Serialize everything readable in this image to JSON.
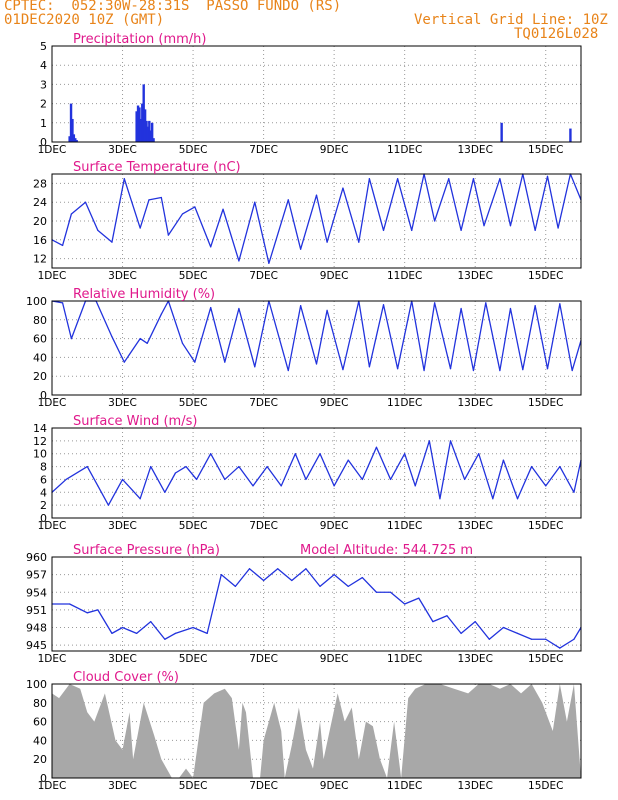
{
  "header": {
    "line1": "CPTEC:  052:30W-28:31S  PASSO FUNDO (RS)",
    "line2": "01DEC2020 10Z (GMT)",
    "grid_note": "Vertical Grid Line: 10Z",
    "model_code": "TQ0126L028"
  },
  "colors": {
    "header": "#e8841a",
    "title": "#e0198c",
    "series": "#2233dd",
    "cloud": "#a8a8a8"
  },
  "chart_data": [
    {
      "type": "bar",
      "title": "Precipitation (mm/h)",
      "x_ticks": [
        "1DEC",
        "3DEC",
        "5DEC",
        "7DEC",
        "9DEC",
        "11DEC",
        "13DEC",
        "15DEC"
      ],
      "y_ticks": [
        0,
        1,
        2,
        3,
        4,
        5
      ],
      "ylim": [
        0,
        5
      ],
      "xlim_days": [
        0,
        15
      ],
      "x_days": [
        0.5,
        0.54,
        0.58,
        0.62,
        0.66,
        0.7,
        2.4,
        2.44,
        2.48,
        2.52,
        2.56,
        2.6,
        2.64,
        2.68,
        2.72,
        2.76,
        2.8,
        2.84,
        2.88,
        12.75,
        14.7
      ],
      "values": [
        0.3,
        2.0,
        1.2,
        0.4,
        0.2,
        0.1,
        1.6,
        1.9,
        1.8,
        1.2,
        2.0,
        3.0,
        1.7,
        1.1,
        0.8,
        1.1,
        0.6,
        1.0,
        0.2,
        1.0,
        0.7
      ],
      "grid": true
    },
    {
      "type": "line",
      "title": "Surface Temperature (nC)",
      "x_ticks": [
        "1DEC",
        "3DEC",
        "5DEC",
        "7DEC",
        "9DEC",
        "11DEC",
        "13DEC",
        "15DEC"
      ],
      "y_ticks": [
        12,
        16,
        20,
        24,
        28
      ],
      "ylim": [
        10,
        30
      ],
      "xlim_days": [
        0,
        15
      ],
      "x_days": [
        0,
        0.3,
        0.55,
        0.95,
        1.3,
        1.7,
        2.05,
        2.5,
        2.75,
        3.1,
        3.3,
        3.7,
        4.05,
        4.5,
        4.85,
        5.3,
        5.75,
        6.15,
        6.7,
        7.05,
        7.5,
        7.8,
        8.25,
        8.7,
        9.0,
        9.4,
        9.8,
        10.2,
        10.55,
        10.85,
        11.25,
        11.6,
        11.95,
        12.25,
        12.7,
        13.0,
        13.35,
        13.7,
        14.05,
        14.35,
        14.7,
        15.0
      ],
      "values": [
        16,
        14.8,
        21.5,
        24,
        18,
        15.5,
        29,
        18.5,
        24.5,
        25,
        17,
        21.5,
        23,
        14.5,
        22.5,
        11.5,
        24,
        11,
        24.5,
        14,
        25.5,
        15.5,
        27,
        15.5,
        29,
        18,
        29,
        18,
        30,
        20,
        29,
        18,
        29,
        19,
        29,
        19,
        30,
        18,
        29.5,
        18.5,
        30,
        24.5
      ],
      "grid": true
    },
    {
      "type": "line",
      "title": "Relative Humidity (%)",
      "x_ticks": [
        "1DEC",
        "3DEC",
        "5DEC",
        "7DEC",
        "9DEC",
        "11DEC",
        "13DEC",
        "15DEC"
      ],
      "y_ticks": [
        0,
        20,
        40,
        60,
        80,
        100
      ],
      "ylim": [
        0,
        100
      ],
      "xlim_days": [
        0,
        15
      ],
      "x_days": [
        0,
        0.3,
        0.55,
        0.95,
        1.25,
        1.7,
        2.05,
        2.5,
        2.7,
        3.1,
        3.3,
        3.7,
        4.05,
        4.5,
        4.9,
        5.3,
        5.75,
        6.15,
        6.7,
        7.05,
        7.5,
        7.8,
        8.25,
        8.7,
        9.0,
        9.4,
        9.8,
        10.2,
        10.55,
        10.85,
        11.3,
        11.6,
        11.95,
        12.3,
        12.7,
        13.0,
        13.35,
        13.7,
        14.05,
        14.4,
        14.75,
        15.0
      ],
      "values": [
        100,
        98,
        60,
        100,
        100,
        62,
        35,
        60,
        55,
        86,
        100,
        55,
        35,
        93,
        35,
        92,
        30,
        100,
        26,
        95,
        33,
        90,
        27,
        100,
        30,
        96,
        28,
        100,
        26,
        98,
        28,
        92,
        26,
        98,
        26,
        92,
        27,
        95,
        28,
        97,
        26,
        58
      ],
      "grid": true
    },
    {
      "type": "line",
      "title": "Surface Wind (m/s)",
      "x_ticks": [
        "1DEC",
        "3DEC",
        "5DEC",
        "7DEC",
        "9DEC",
        "11DEC",
        "13DEC",
        "15DEC"
      ],
      "y_ticks": [
        0,
        2,
        4,
        6,
        8,
        10,
        12,
        14
      ],
      "ylim": [
        0,
        14
      ],
      "xlim_days": [
        0,
        15
      ],
      "x_days": [
        0,
        0.4,
        1.0,
        1.3,
        1.6,
        2.0,
        2.5,
        2.8,
        3.2,
        3.5,
        3.8,
        4.1,
        4.5,
        4.9,
        5.3,
        5.7,
        6.1,
        6.5,
        6.9,
        7.2,
        7.6,
        8.0,
        8.4,
        8.8,
        9.2,
        9.6,
        10.0,
        10.3,
        10.7,
        11.0,
        11.3,
        11.7,
        12.1,
        12.5,
        12.8,
        13.2,
        13.6,
        14.0,
        14.4,
        14.8,
        15.0
      ],
      "values": [
        4,
        6,
        8,
        5,
        2,
        6,
        3,
        8,
        4,
        7,
        8,
        6,
        10,
        6,
        8,
        5,
        8,
        5,
        10,
        6,
        10,
        5,
        9,
        6,
        11,
        6,
        10,
        5,
        12,
        3,
        12,
        6,
        10,
        3,
        9,
        3,
        8,
        5,
        8,
        4,
        9
      ],
      "grid": true
    },
    {
      "type": "line",
      "title": "Surface Pressure (hPa)",
      "annotation": "Model Altitude: 544.725 m",
      "x_ticks": [
        "1DEC",
        "3DEC",
        "5DEC",
        "7DEC",
        "9DEC",
        "11DEC",
        "13DEC",
        "15DEC"
      ],
      "y_ticks": [
        945,
        948,
        951,
        954,
        957,
        960
      ],
      "ylim": [
        944,
        960
      ],
      "xlim_days": [
        0,
        15
      ],
      "x_days": [
        0,
        0.5,
        1.0,
        1.3,
        1.7,
        2.0,
        2.4,
        2.8,
        3.2,
        3.5,
        4.0,
        4.4,
        4.8,
        5.2,
        5.6,
        6.0,
        6.4,
        6.8,
        7.2,
        7.6,
        8.0,
        8.4,
        8.8,
        9.2,
        9.6,
        10.0,
        10.4,
        10.8,
        11.2,
        11.6,
        12.0,
        12.4,
        12.8,
        13.2,
        13.6,
        14.0,
        14.4,
        14.8,
        15.0
      ],
      "values": [
        952,
        952,
        950.5,
        951,
        947,
        948,
        947,
        949,
        946,
        947,
        948,
        947,
        957,
        955,
        958,
        956,
        958,
        956,
        958,
        955,
        957,
        955,
        956.5,
        954,
        954,
        952,
        953,
        949,
        950,
        947,
        949,
        946,
        948,
        947,
        946,
        946,
        944.5,
        946,
        948
      ],
      "grid": true
    },
    {
      "type": "area",
      "title": "Cloud Cover (%)",
      "x_ticks": [
        "1DEC",
        "3DEC",
        "5DEC",
        "7DEC",
        "9DEC",
        "11DEC",
        "13DEC",
        "15DEC"
      ],
      "y_ticks": [
        0,
        20,
        40,
        60,
        80,
        100
      ],
      "ylim": [
        0,
        100
      ],
      "xlim_days": [
        0,
        15
      ],
      "x_days": [
        0,
        0.2,
        0.5,
        0.8,
        1.0,
        1.2,
        1.5,
        1.8,
        2.0,
        2.2,
        2.3,
        2.6,
        2.9,
        3.1,
        3.4,
        3.6,
        3.8,
        4.0,
        4.3,
        4.6,
        4.9,
        5.1,
        5.3,
        5.4,
        5.5,
        5.7,
        5.9,
        6.0,
        6.3,
        6.5,
        6.6,
        6.8,
        7.0,
        7.2,
        7.4,
        7.6,
        7.7,
        7.9,
        8.1,
        8.3,
        8.5,
        8.7,
        8.9,
        9.1,
        9.3,
        9.5,
        9.7,
        9.9,
        10.1,
        10.3,
        10.6,
        11.0,
        11.4,
        11.8,
        12.1,
        12.4,
        12.7,
        13.0,
        13.3,
        13.6,
        13.9,
        14.2,
        14.4,
        14.6,
        14.8,
        15.0
      ],
      "values": [
        90,
        85,
        100,
        95,
        70,
        60,
        90,
        40,
        30,
        70,
        20,
        80,
        45,
        20,
        0,
        0,
        10,
        0,
        80,
        90,
        95,
        85,
        30,
        80,
        70,
        0,
        0,
        40,
        80,
        50,
        0,
        35,
        75,
        30,
        10,
        60,
        20,
        55,
        90,
        60,
        75,
        20,
        60,
        55,
        20,
        0,
        60,
        0,
        85,
        95,
        100,
        100,
        95,
        90,
        100,
        100,
        95,
        100,
        90,
        100,
        80,
        50,
        100,
        60,
        100,
        0
      ],
      "grid": true
    }
  ]
}
